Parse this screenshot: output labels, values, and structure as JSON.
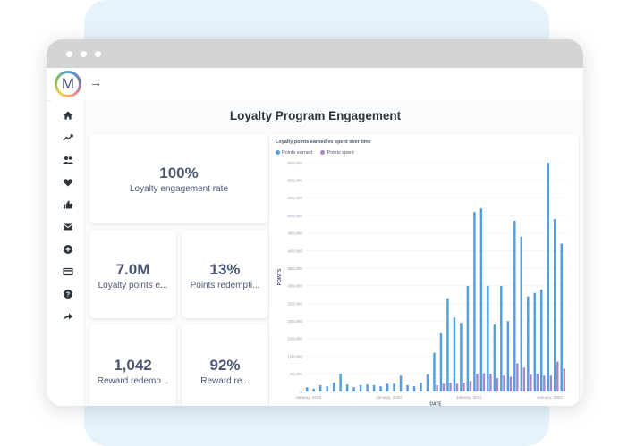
{
  "header": {
    "logo_letter": "M"
  },
  "sidebar": {
    "icons": [
      "home-icon",
      "trending-icon",
      "people-icon",
      "heart-icon",
      "thumbs-up-icon",
      "mail-icon",
      "add-circle-icon",
      "credit-card-icon",
      "help-icon",
      "share-icon"
    ]
  },
  "dashboard": {
    "title": "Loyalty Program Engagement",
    "cards": [
      {
        "value": "100%",
        "label": "Loyalty engagement rate"
      },
      {
        "value": "7.0M",
        "label": "Loyalty points e..."
      },
      {
        "value": "13%",
        "label": "Points redempti..."
      },
      {
        "value": "1,042",
        "label": "Reward redemp..."
      },
      {
        "value": "92%",
        "label": "Reward re..."
      }
    ]
  },
  "chart_data": {
    "type": "bar",
    "title": "Loyalty points earned vs spent over time",
    "xlabel": "DATE",
    "ylabel": "POINTS",
    "ylim": [
      0,
      650000
    ],
    "yticks": [
      0,
      50000,
      100000,
      150000,
      200000,
      250000,
      300000,
      350000,
      400000,
      450000,
      500000,
      550000,
      600000,
      650000
    ],
    "ytick_labels": [
      "0",
      "50,000",
      "100,000",
      "150,000",
      "200,000",
      "250,000",
      "300,000",
      "350,000",
      "400,000",
      "450,000",
      "500,000",
      "550,000",
      "600,000",
      "650,000"
    ],
    "xtick_labels": [
      {
        "index": 0,
        "label": "January, 2019"
      },
      {
        "index": 12,
        "label": "January, 2020"
      },
      {
        "index": 24,
        "label": "January, 2021"
      },
      {
        "index": 36,
        "label": "January, 2022"
      }
    ],
    "legend_position": "top-left",
    "colors": {
      "earned": "#509ee3",
      "spent": "#a989c5"
    },
    "series": [
      {
        "name": "Points earned",
        "values": [
          12000,
          8000,
          18000,
          15000,
          25000,
          50000,
          20000,
          12000,
          18000,
          20000,
          18000,
          15000,
          22000,
          22000,
          45000,
          18000,
          15000,
          25000,
          48000,
          110000,
          165000,
          265000,
          210000,
          195000,
          300000,
          510000,
          520000,
          300000,
          190000,
          300000,
          200000,
          485000,
          440000,
          270000,
          280000,
          290000,
          650000,
          490000,
          420000
        ]
      },
      {
        "name": "Points spent",
        "values": [
          0,
          0,
          0,
          0,
          0,
          0,
          0,
          0,
          0,
          0,
          0,
          0,
          0,
          0,
          0,
          0,
          0,
          0,
          0,
          18000,
          22000,
          25000,
          22000,
          25000,
          30000,
          50000,
          52000,
          50000,
          38000,
          45000,
          42000,
          80000,
          68000,
          48000,
          50000,
          45000,
          45000,
          85000,
          65000
        ]
      }
    ]
  }
}
